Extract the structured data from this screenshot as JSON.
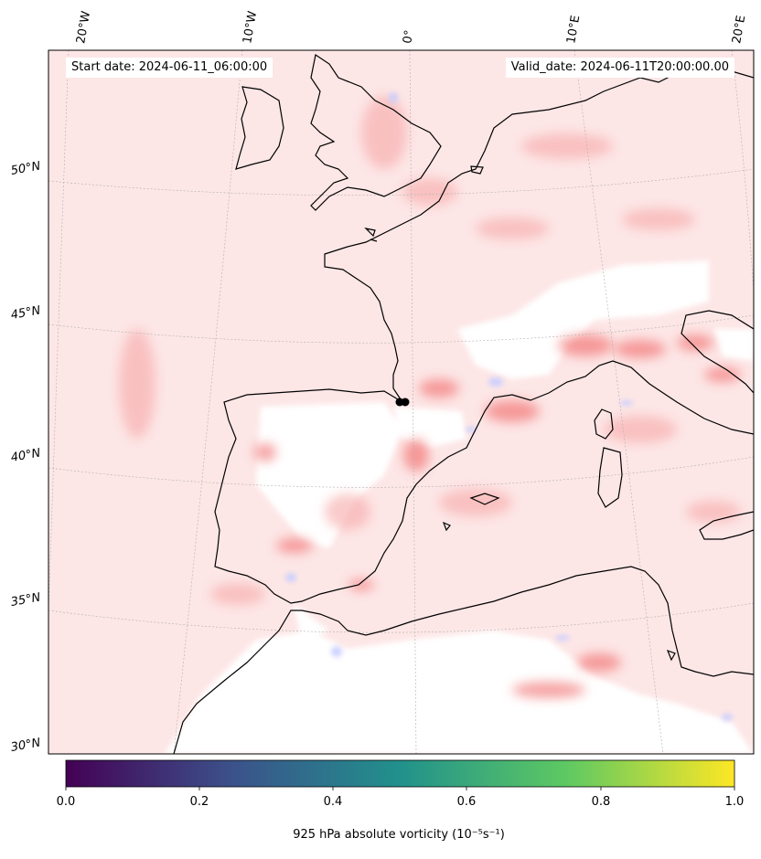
{
  "header": {
    "start_date": "Start date: 2024-06-11_06:00:00",
    "valid_date": "Valid_date: 2024-06-11T20:00:00.00"
  },
  "map": {
    "longitude_labels": [
      "20°W",
      "10°W",
      "0°",
      "10°E",
      "20°E"
    ],
    "latitude_labels": [
      "50°N",
      "45°N",
      "40°N",
      "35°N",
      "30°N"
    ],
    "field_colors": {
      "positive": "#f05a5a",
      "weak_positive": "#fde4e4",
      "negative": "#dfe3ff",
      "zero": "#ffffff"
    },
    "coast_color": "#000000",
    "grid": true
  },
  "colorbar": {
    "ticks": [
      "0.0",
      "0.2",
      "0.4",
      "0.6",
      "0.8",
      "1.0"
    ],
    "label": "925 hPa absolute vorticity (10⁻⁵s⁻¹)",
    "colormap": "viridis",
    "colors": [
      "#440154",
      "#3b528b",
      "#21918c",
      "#5ec962",
      "#fde725"
    ]
  }
}
